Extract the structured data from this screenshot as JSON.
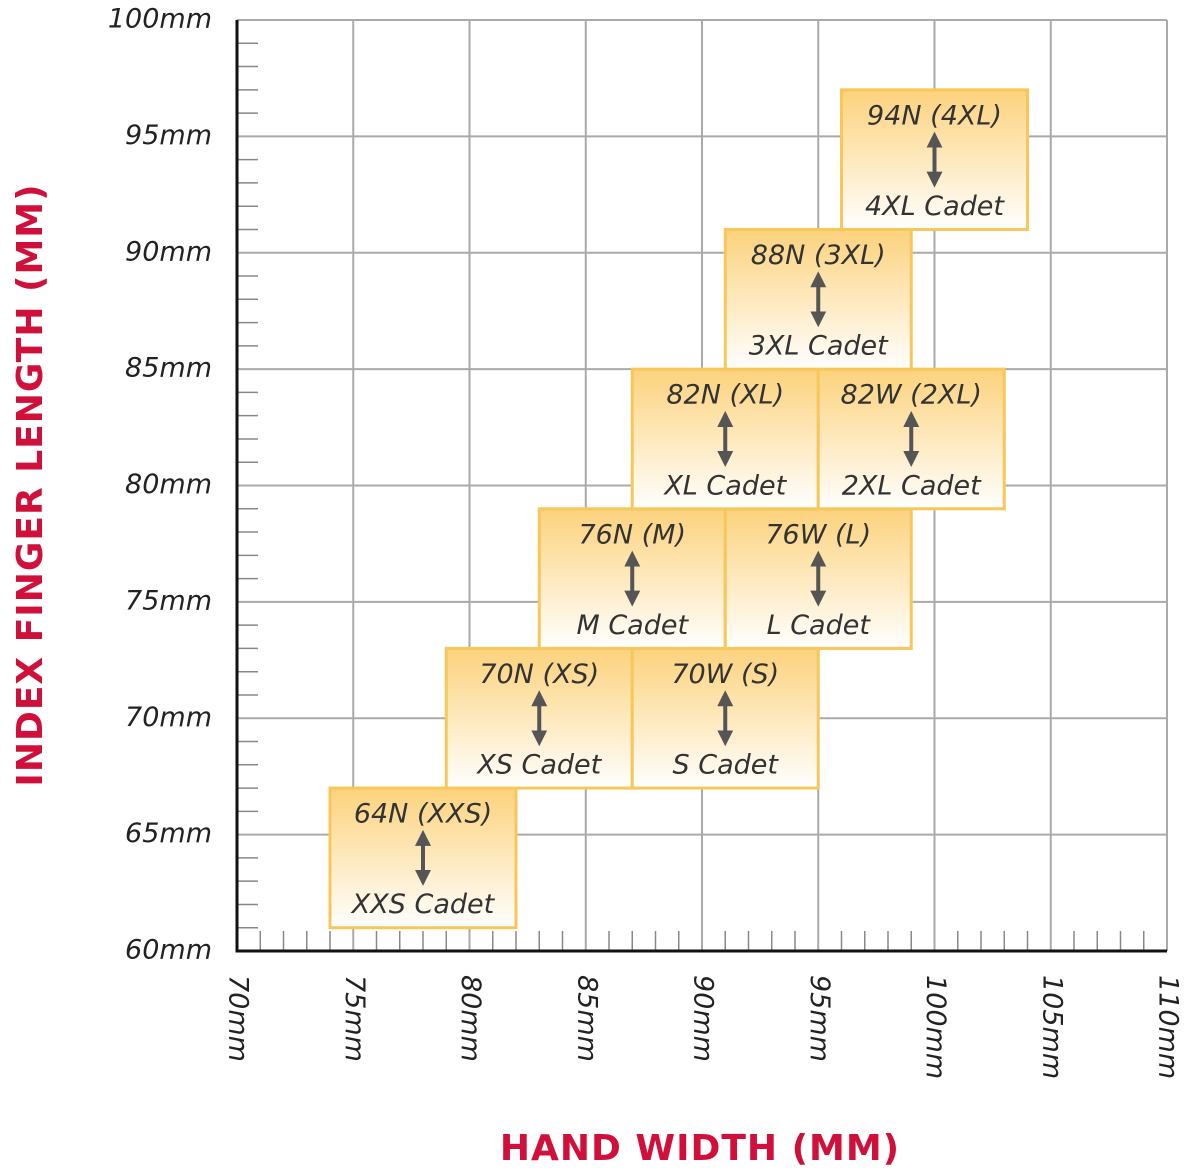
{
  "chart_data": {
    "type": "range-boxes",
    "x_label": "HAND WIDTH (MM)",
    "y_label": "INDEX FINGER LENGTH (MM)",
    "xlim": [
      70,
      110
    ],
    "ylim": [
      60,
      100
    ],
    "xticks": [
      {
        "value": 70,
        "label": "70mm"
      },
      {
        "value": 75,
        "label": "75mm"
      },
      {
        "value": 80,
        "label": "80mm"
      },
      {
        "value": 85,
        "label": "85mm"
      },
      {
        "value": 90,
        "label": "90mm"
      },
      {
        "value": 95,
        "label": "95mm"
      },
      {
        "value": 100,
        "label": "100mm"
      },
      {
        "value": 105,
        "label": "105mm"
      },
      {
        "value": 110,
        "label": "110mm"
      }
    ],
    "yticks": [
      {
        "value": 60,
        "label": "60mm"
      },
      {
        "value": 65,
        "label": "65mm"
      },
      {
        "value": 70,
        "label": "70mm"
      },
      {
        "value": 75,
        "label": "75mm"
      },
      {
        "value": 80,
        "label": "80mm"
      },
      {
        "value": 85,
        "label": "85mm"
      },
      {
        "value": 90,
        "label": "90mm"
      },
      {
        "value": 95,
        "label": "95mm"
      },
      {
        "value": 100,
        "label": "100mm"
      }
    ],
    "x_minor_ticks": [
      71,
      72,
      73,
      74,
      76,
      77,
      78,
      79,
      81,
      82,
      83,
      84,
      86,
      87,
      88,
      89,
      91,
      92,
      93,
      94,
      96,
      97,
      98,
      99,
      101,
      102,
      103,
      104,
      106,
      107,
      108,
      109
    ],
    "y_minor_ticks": [
      61,
      62,
      63,
      64,
      66,
      67,
      68,
      69,
      71,
      72,
      73,
      74,
      76,
      77,
      78,
      79,
      81,
      82,
      83,
      84,
      86,
      87,
      88,
      89,
      91,
      92,
      93,
      94,
      96,
      97,
      98,
      99
    ],
    "grid": true,
    "box_color": "#f8c75c",
    "boxes": [
      {
        "label": "64N (XXS)",
        "sublabel": "XXS Cadet",
        "x": [
          74,
          82
        ],
        "y": [
          61,
          67
        ]
      },
      {
        "label": "70N (XS)",
        "sublabel": "XS Cadet",
        "x": [
          79,
          87
        ],
        "y": [
          67,
          73
        ]
      },
      {
        "label": "70W (S)",
        "sublabel": "S Cadet",
        "x": [
          87,
          95
        ],
        "y": [
          67,
          73
        ]
      },
      {
        "label": "76N (M)",
        "sublabel": "M Cadet",
        "x": [
          83,
          91
        ],
        "y": [
          73,
          79
        ]
      },
      {
        "label": "76W (L)",
        "sublabel": "L Cadet",
        "x": [
          91,
          99
        ],
        "y": [
          73,
          79
        ]
      },
      {
        "label": "82N (XL)",
        "sublabel": "XL Cadet",
        "x": [
          87,
          95
        ],
        "y": [
          79,
          85
        ]
      },
      {
        "label": "82W (2XL)",
        "sublabel": "2XL Cadet",
        "x": [
          95,
          103
        ],
        "y": [
          79,
          85
        ]
      },
      {
        "label": "88N (3XL)",
        "sublabel": "3XL Cadet",
        "x": [
          91,
          99
        ],
        "y": [
          85,
          91
        ]
      },
      {
        "label": "94N (4XL)",
        "sublabel": "4XL Cadet",
        "x": [
          96,
          104
        ],
        "y": [
          91,
          97
        ]
      }
    ]
  }
}
